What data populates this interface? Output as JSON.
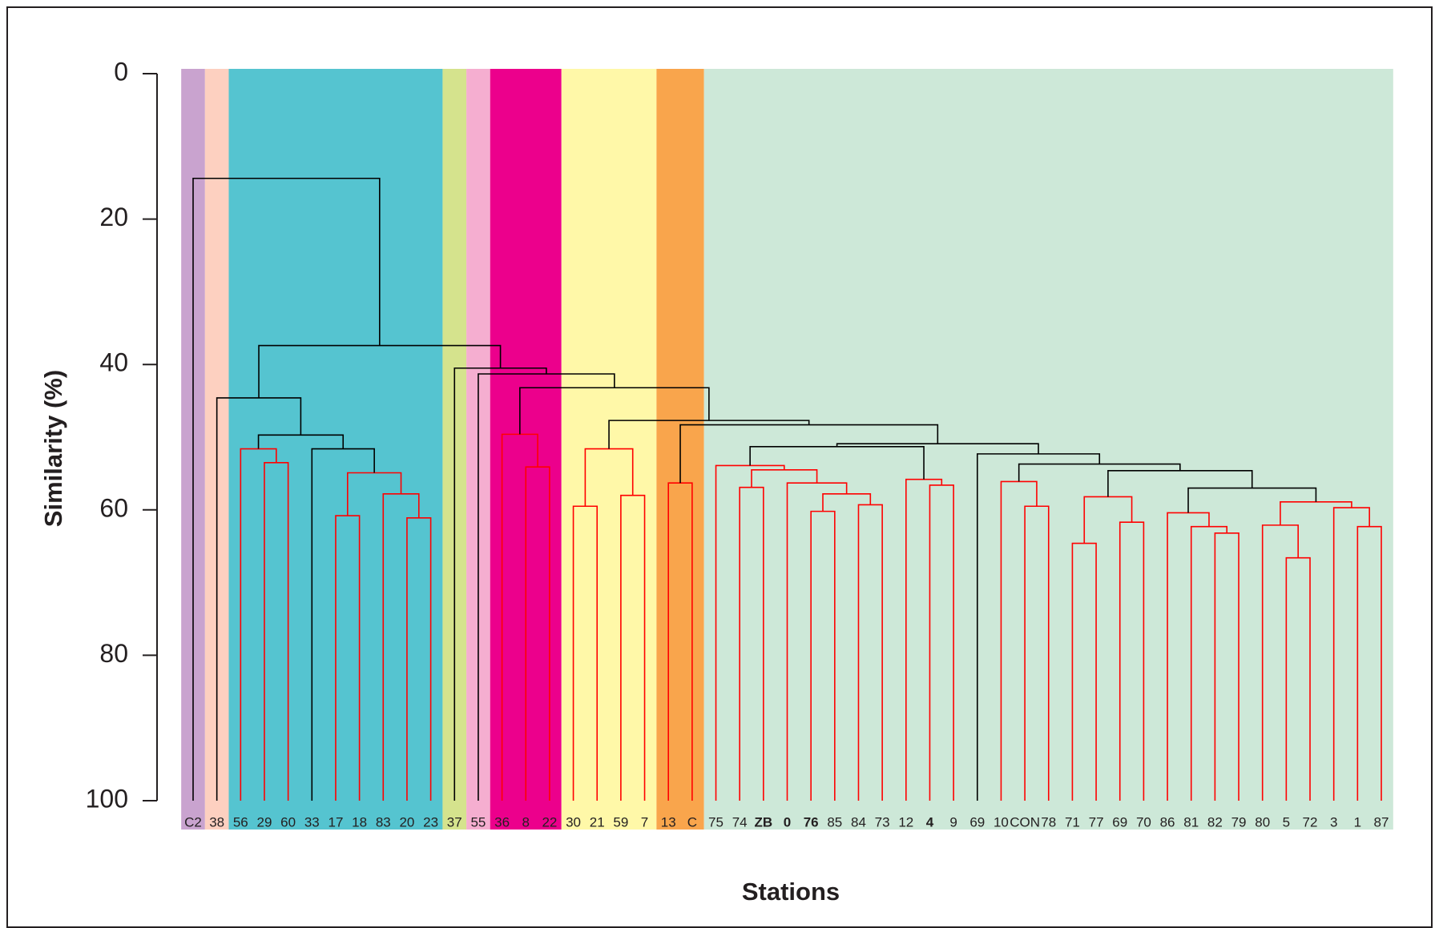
{
  "chart_data": {
    "type": "dendrogram",
    "y_label": "Similarity (%)",
    "x_label": "Stations",
    "ylim": [
      0,
      100
    ],
    "yticks": [
      0,
      20,
      40,
      60,
      80,
      100
    ],
    "y_inverted": true,
    "leaves": [
      "C2",
      "38",
      "56",
      "29",
      "60",
      "33",
      "17",
      "18",
      "83",
      "20",
      "23",
      "37",
      "55",
      "36",
      "8",
      "22",
      "30",
      "21",
      "59",
      "7",
      "13",
      "C",
      "75",
      "74",
      "ZB",
      "0",
      "76",
      "85",
      "84",
      "73",
      "12",
      "4",
      "9",
      "69",
      "10",
      "CON",
      "78",
      "71",
      "77",
      "69",
      "70",
      "86",
      "81",
      "82",
      "79",
      "80",
      "5",
      "72",
      "3",
      "1",
      "87"
    ],
    "bold_leaves": [
      24,
      25,
      26,
      31
    ],
    "groups": [
      {
        "start": 0,
        "end": 0,
        "color": "#c9a3cf"
      },
      {
        "start": 1,
        "end": 1,
        "color": "#fdd0c0"
      },
      {
        "start": 2,
        "end": 10,
        "color": "#55c4d0"
      },
      {
        "start": 11,
        "end": 11,
        "color": "#d5e38d"
      },
      {
        "start": 12,
        "end": 12,
        "color": "#f5aed0"
      },
      {
        "start": 13,
        "end": 15,
        "color": "#ec008c"
      },
      {
        "start": 16,
        "end": 19,
        "color": "#fff8a8"
      },
      {
        "start": 20,
        "end": 21,
        "color": "#f9a54c"
      },
      {
        "start": 22,
        "end": 50,
        "color": "#cde8d8"
      }
    ],
    "merges": [
      {
        "left": 3,
        "right": 4,
        "height": 53.5,
        "color": "#ff0000"
      },
      {
        "left": 2,
        "right": 51,
        "height": 51.6,
        "color": "#ff0000"
      },
      {
        "left": 9,
        "right": 10,
        "height": 61.1,
        "color": "#ff0000"
      },
      {
        "left": 8,
        "right": 53,
        "height": 57.8,
        "color": "#ff0000"
      },
      {
        "left": 6,
        "right": 7,
        "height": 60.8,
        "color": "#ff0000"
      },
      {
        "left": 55,
        "right": 54,
        "height": 54.9,
        "color": "#ff0000"
      },
      {
        "left": 5,
        "right": 56,
        "height": 51.6,
        "color": "#000000"
      },
      {
        "left": 52,
        "right": 57,
        "height": 49.7,
        "color": "#000000"
      },
      {
        "left": 1,
        "right": 58,
        "height": 44.6,
        "color": "#000000"
      },
      {
        "left": 14,
        "right": 15,
        "height": 54.1,
        "color": "#ff0000"
      },
      {
        "left": 13,
        "right": 60,
        "height": 49.6,
        "color": "#ff0000"
      },
      {
        "left": 16,
        "right": 17,
        "height": 59.5,
        "color": "#ff0000"
      },
      {
        "left": 18,
        "right": 19,
        "height": 58.0,
        "color": "#ff0000"
      },
      {
        "left": 62,
        "right": 63,
        "height": 51.6,
        "color": "#ff0000"
      },
      {
        "left": 20,
        "right": 21,
        "height": 56.3,
        "color": "#ff0000"
      },
      {
        "left": 23,
        "right": 24,
        "height": 56.9,
        "color": "#ff0000"
      },
      {
        "left": 26,
        "right": 27,
        "height": 60.2,
        "color": "#ff0000"
      },
      {
        "left": 28,
        "right": 29,
        "height": 59.3,
        "color": "#ff0000"
      },
      {
        "left": 67,
        "right": 68,
        "height": 57.8,
        "color": "#ff0000"
      },
      {
        "left": 25,
        "right": 69,
        "height": 56.3,
        "color": "#ff0000"
      },
      {
        "left": 66,
        "right": 70,
        "height": 54.5,
        "color": "#ff0000"
      },
      {
        "left": 22,
        "right": 71,
        "height": 53.9,
        "color": "#ff0000"
      },
      {
        "left": 31,
        "right": 32,
        "height": 56.6,
        "color": "#ff0000"
      },
      {
        "left": 30,
        "right": 73,
        "height": 55.8,
        "color": "#ff0000"
      },
      {
        "left": 72,
        "right": 74,
        "height": 51.3,
        "color": "#000000"
      },
      {
        "left": 35,
        "right": 36,
        "height": 59.5,
        "color": "#ff0000"
      },
      {
        "left": 34,
        "right": 76,
        "height": 56.1,
        "color": "#ff0000"
      },
      {
        "left": 37,
        "right": 38,
        "height": 64.6,
        "color": "#ff0000"
      },
      {
        "left": 39,
        "right": 40,
        "height": 61.7,
        "color": "#ff0000"
      },
      {
        "left": 78,
        "right": 79,
        "height": 58.2,
        "color": "#ff0000"
      },
      {
        "left": 43,
        "right": 44,
        "height": 63.2,
        "color": "#ff0000"
      },
      {
        "left": 42,
        "right": 81,
        "height": 62.3,
        "color": "#ff0000"
      },
      {
        "left": 41,
        "right": 82,
        "height": 60.4,
        "color": "#ff0000"
      },
      {
        "left": 46,
        "right": 47,
        "height": 66.6,
        "color": "#ff0000"
      },
      {
        "left": 45,
        "right": 84,
        "height": 62.1,
        "color": "#ff0000"
      },
      {
        "left": 49,
        "right": 50,
        "height": 62.3,
        "color": "#ff0000"
      },
      {
        "left": 48,
        "right": 86,
        "height": 59.7,
        "color": "#ff0000"
      },
      {
        "left": 85,
        "right": 87,
        "height": 58.9,
        "color": "#ff0000"
      },
      {
        "left": 83,
        "right": 88,
        "height": 57.0,
        "color": "#000000"
      },
      {
        "left": 80,
        "right": 89,
        "height": 54.6,
        "color": "#000000"
      },
      {
        "left": 77,
        "right": 90,
        "height": 53.7,
        "color": "#000000"
      },
      {
        "left": 33,
        "right": 91,
        "height": 52.3,
        "color": "#000000"
      },
      {
        "left": 75,
        "right": 92,
        "height": 50.9,
        "color": "#000000"
      },
      {
        "left": 65,
        "right": 93,
        "height": 48.3,
        "color": "#000000"
      },
      {
        "left": 64,
        "right": 94,
        "height": 47.7,
        "color": "#000000"
      },
      {
        "left": 61,
        "right": 95,
        "height": 43.2,
        "color": "#000000"
      },
      {
        "left": 12,
        "right": 96,
        "height": 41.3,
        "color": "#000000"
      },
      {
        "left": 11,
        "right": 97,
        "height": 40.5,
        "color": "#000000"
      },
      {
        "left": 59,
        "right": 98,
        "height": 37.4,
        "color": "#000000"
      },
      {
        "left": 0,
        "right": 99,
        "height": 14.4,
        "color": "#000000"
      }
    ]
  }
}
